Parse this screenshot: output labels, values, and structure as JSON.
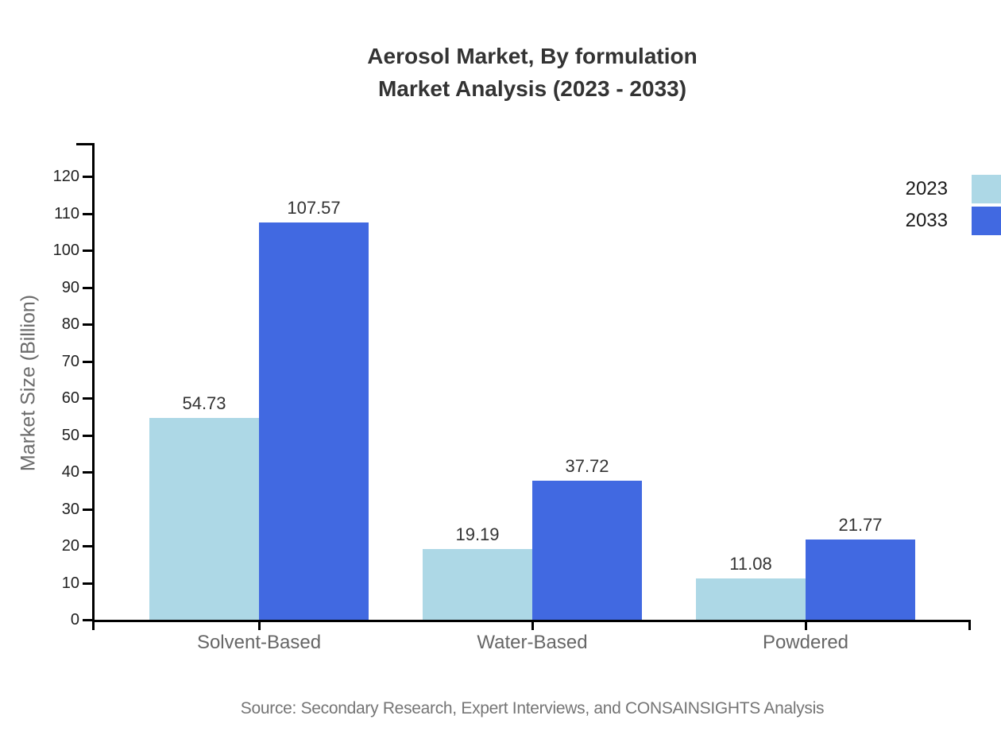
{
  "chart_data": {
    "type": "bar",
    "title_line1": "Aerosol Market, By formulation",
    "title_line2": "Market Analysis (2023 - 2033)",
    "categories": [
      "Solvent-Based",
      "Water-Based",
      "Powdered"
    ],
    "series": [
      {
        "name": "2023",
        "color": "#ADD8E6",
        "values": [
          54.73,
          19.19,
          11.08
        ]
      },
      {
        "name": "2033",
        "color": "#4169E1",
        "values": [
          107.57,
          37.72,
          21.77
        ]
      }
    ],
    "xlabel": "",
    "ylabel": "Market Size (Billion)",
    "ylim": [
      0,
      130
    ],
    "yticks": [
      0,
      10,
      20,
      30,
      40,
      50,
      60,
      70,
      80,
      90,
      100,
      110,
      120
    ],
    "grid": false,
    "legend_position": "top-right",
    "value_label_decimals": 2
  },
  "source_note": "Source: Secondary Research, Expert Interviews, and CONSAINSIGHTS Analysis"
}
